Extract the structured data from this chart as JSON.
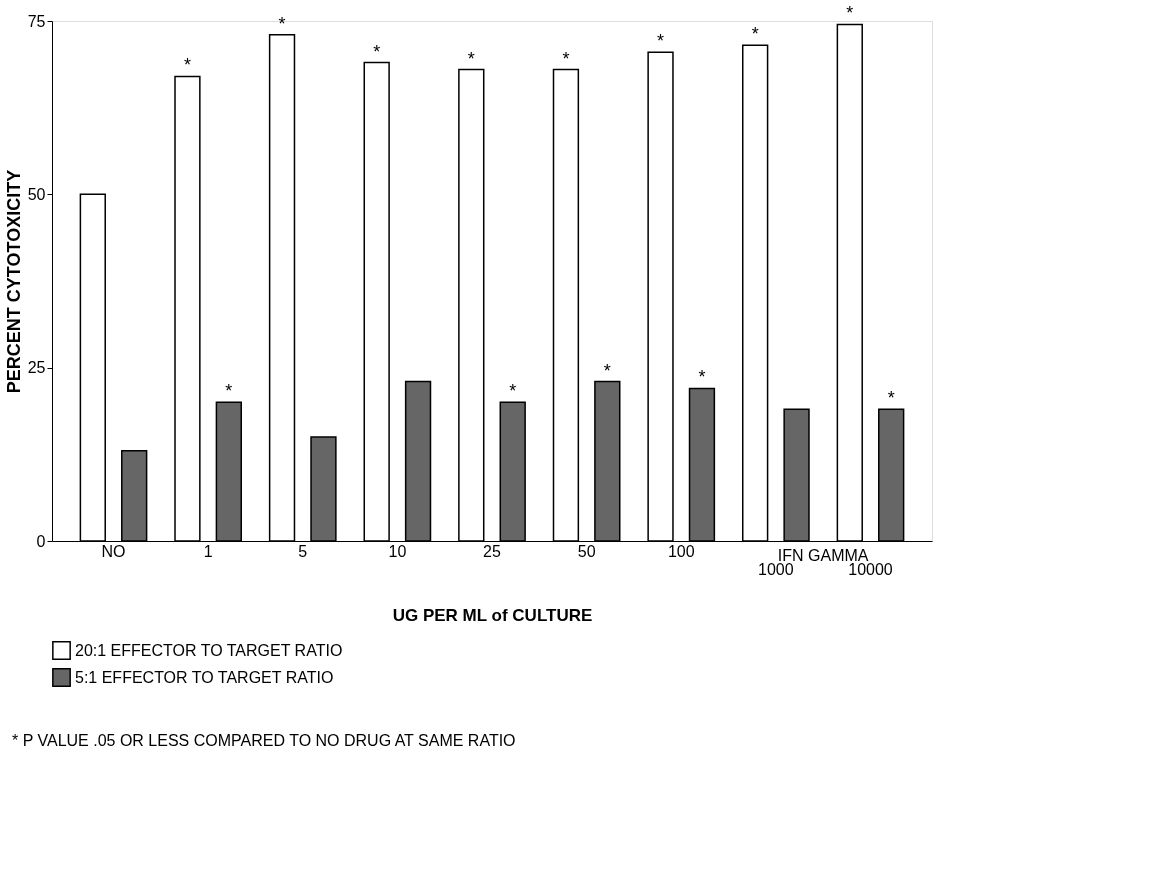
{
  "chart_data": {
    "type": "bar",
    "ylabel": "PERCENT CYTOTOXICITY",
    "xlabel": "UG PER ML of CULTURE",
    "categories": [
      "NO",
      "1",
      "5",
      "10",
      "25",
      "50",
      "100",
      "1000",
      "10000"
    ],
    "series": [
      {
        "name": "20:1 EFFECTOR TO TARGET RATIO",
        "color": "#ffffff",
        "values": [
          50,
          67,
          73,
          69,
          68,
          68,
          70.5,
          71.5,
          74.5
        ],
        "value_labels": [
          null,
          "*",
          "*",
          "*",
          "*",
          "*",
          "*",
          "*",
          "*"
        ]
      },
      {
        "name": "5:1 EFFECTOR TO TARGET RATIO",
        "color": "#666666",
        "values": [
          13,
          20,
          15,
          23,
          20,
          23,
          22,
          19,
          19
        ],
        "value_labels": [
          null,
          "*",
          null,
          null,
          "*",
          "*",
          "*",
          null,
          "*"
        ]
      }
    ],
    "ylim": [
      0,
      75
    ],
    "yticks": [
      0,
      25,
      50,
      75
    ],
    "grid": false,
    "legend": "bottom left",
    "annotations": [
      "IFN GAMMA",
      "* P VALUE .05 OR LESS COMPARED TO NO DRUG AT SAME RATIO"
    ]
  }
}
